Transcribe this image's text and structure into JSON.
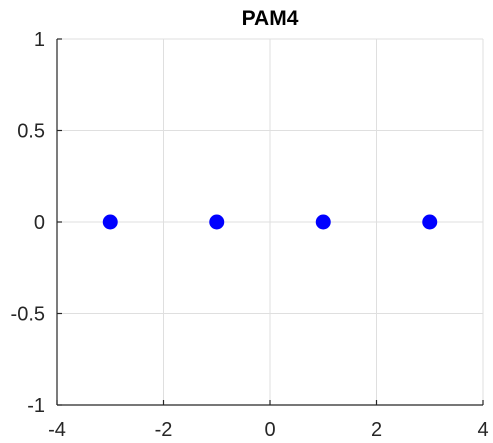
{
  "chart_data": {
    "type": "scatter",
    "title": "PAM4",
    "xlabel": "",
    "ylabel": "",
    "xlim": [
      -4,
      4
    ],
    "ylim": [
      -1,
      1
    ],
    "xticks": [
      -4,
      -2,
      0,
      2,
      4
    ],
    "yticks": [
      -1,
      -0.5,
      0,
      0.5,
      1
    ],
    "xtick_labels": [
      "-4",
      "-2",
      "0",
      "2",
      "4"
    ],
    "ytick_labels": [
      "-1",
      "-0.5",
      "0",
      "0.5",
      "1"
    ],
    "grid": true,
    "series": [
      {
        "color": "#0000ff",
        "marker": "filled-circle",
        "points": [
          {
            "x": -3,
            "y": 0
          },
          {
            "x": -1,
            "y": 0
          },
          {
            "x": 1,
            "y": 0
          },
          {
            "x": 3,
            "y": 0
          }
        ]
      }
    ]
  }
}
